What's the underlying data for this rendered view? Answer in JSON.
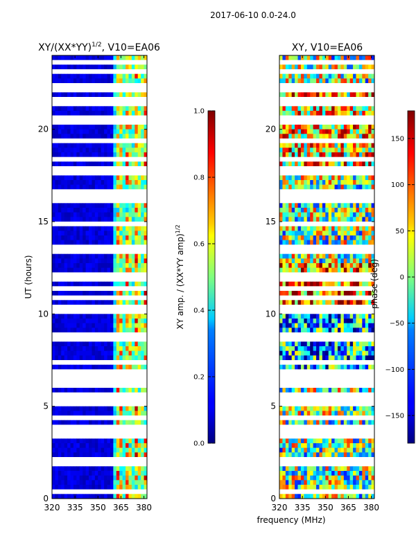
{
  "suptitle": "2017-06-10 0.0-24.0",
  "chart_data": [
    {
      "type": "heatmap",
      "title": "XY/(XX*YY)",
      "title_exponent": "1/2",
      "title_suffix": ", V10=EA06",
      "xlabel": "frequency (MHz)",
      "ylabel": "UT (hours)",
      "x_range": [
        320,
        382
      ],
      "y_range": [
        0,
        24
      ],
      "x_ticks": [
        320,
        335,
        350,
        365,
        380
      ],
      "y_ticks": [
        0,
        5,
        10,
        15,
        20
      ],
      "colorscale": "jet",
      "colorbar": {
        "label": "XY amp. / (XX*YY amp)",
        "label_exponent": "1/2",
        "range": [
          0.0,
          1.0
        ],
        "ticks": [
          "0.0",
          "0.2",
          "0.4",
          "0.6",
          "0.8",
          "1.0"
        ]
      },
      "notes": "Low amplitude (~0.05) over 320-360 MHz; elevated amplitude (0.3-0.9) in vertical bands near 361-381 MHz; white horizontal gaps indicate flagged/missing times."
    },
    {
      "type": "heatmap",
      "title": "XY, V10=EA06",
      "xlabel": "frequency (MHz)",
      "ylabel": "",
      "x_range": [
        320,
        382
      ],
      "y_range": [
        0,
        24
      ],
      "x_ticks": [
        320,
        335,
        350,
        365,
        380
      ],
      "y_ticks": [
        0,
        5,
        10,
        15,
        20
      ],
      "colorscale": "jet",
      "colorbar": {
        "label": "phase (deg)",
        "range": [
          -180,
          180
        ],
        "ticks": [
          "-150",
          "-100",
          "-50",
          "0",
          "50",
          "100",
          "150"
        ]
      },
      "notes": "Phase noisy across band; warm (positive) phases dominate ~10-12.5 h and around 18-22 h; cooler phases ~6-10 h."
    }
  ]
}
